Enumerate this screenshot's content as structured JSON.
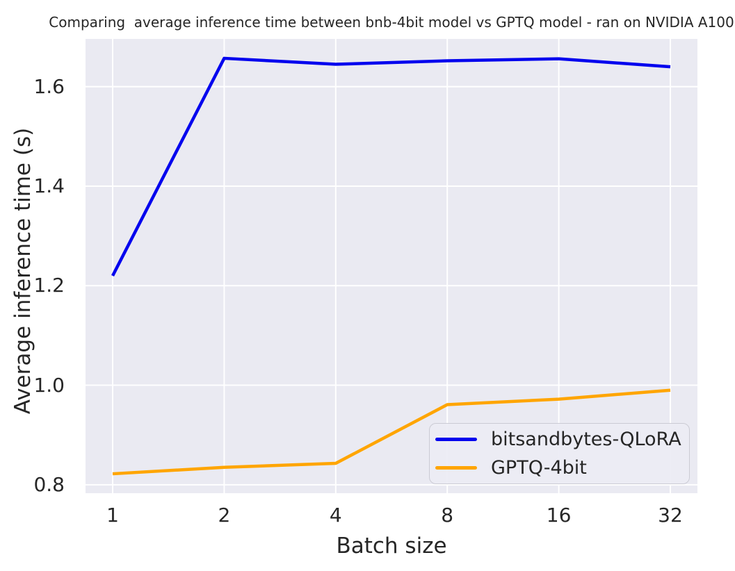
{
  "title": "Comparing  average inference time between bnb-4bit model vs GPTQ model - ran on NVIDIA A100",
  "chart_data": {
    "type": "line",
    "title": "Comparing  average inference time between bnb-4bit model vs GPTQ model - ran on NVIDIA A100",
    "xlabel": "Batch size",
    "ylabel": "Average inference time (s)",
    "categories": [
      1,
      2,
      4,
      8,
      16,
      32
    ],
    "x_tick_labels": [
      "1",
      "2",
      "4",
      "8",
      "16",
      "32"
    ],
    "y_ticks": [
      0.8,
      1.0,
      1.2,
      1.4,
      1.6
    ],
    "y_tick_labels": [
      "0.8",
      "1.0",
      "1.2",
      "1.4",
      "1.6"
    ],
    "ylim": [
      0.783,
      1.696
    ],
    "grid": true,
    "legend_position": "lower right",
    "series": [
      {
        "name": "bitsandbytes-QLoRA",
        "color": "#0404ee",
        "values": [
          1.22,
          1.657,
          1.645,
          1.652,
          1.656,
          1.64
        ]
      },
      {
        "name": "GPTQ-4bit",
        "color": "#ffa500",
        "values": [
          0.822,
          0.835,
          0.843,
          0.961,
          0.972,
          0.99
        ]
      }
    ]
  },
  "colors": {
    "axes_background": "#eaeaf2",
    "grid": "#ffffff",
    "text": "#262626",
    "legend_background": "#ececf4",
    "legend_border": "#cbcbd4"
  }
}
